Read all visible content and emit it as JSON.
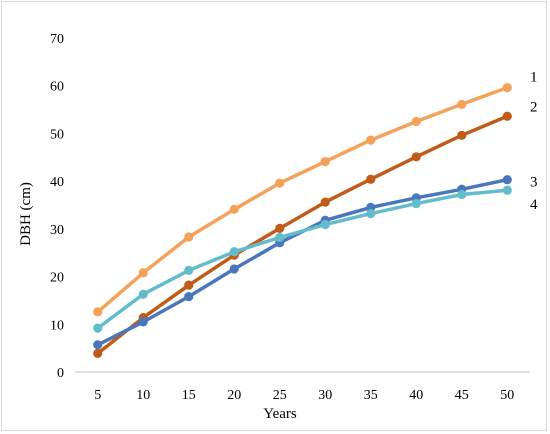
{
  "chart_data": {
    "type": "line",
    "title": "",
    "xlabel": "Years",
    "ylabel": "DBH (cm)",
    "x": [
      5,
      10,
      15,
      20,
      25,
      30,
      35,
      40,
      45,
      50
    ],
    "ylim": [
      0,
      70
    ],
    "yticks": [
      0,
      10,
      20,
      30,
      40,
      50,
      60,
      70
    ],
    "grid": false,
    "legend": "none",
    "series": [
      {
        "name": "1",
        "color": "#f4a15a",
        "values": [
          12.6,
          20.8,
          28.3,
          34.1,
          39.6,
          44.1,
          48.6,
          52.5,
          56.1,
          59.6
        ]
      },
      {
        "name": "2",
        "color": "#c05c1a",
        "values": [
          3.9,
          11.4,
          18.2,
          24.5,
          30.1,
          35.6,
          40.4,
          45.1,
          49.6,
          53.6
        ]
      },
      {
        "name": "3",
        "color": "#4a77bb",
        "values": [
          5.7,
          10.5,
          15.8,
          21.6,
          27.1,
          31.8,
          34.5,
          36.5,
          38.3,
          40.3
        ]
      },
      {
        "name": "4",
        "color": "#63bccc",
        "values": [
          9.2,
          16.3,
          21.3,
          25.2,
          28.2,
          30.9,
          33.2,
          35.3,
          37.2,
          38.1
        ]
      }
    ]
  }
}
